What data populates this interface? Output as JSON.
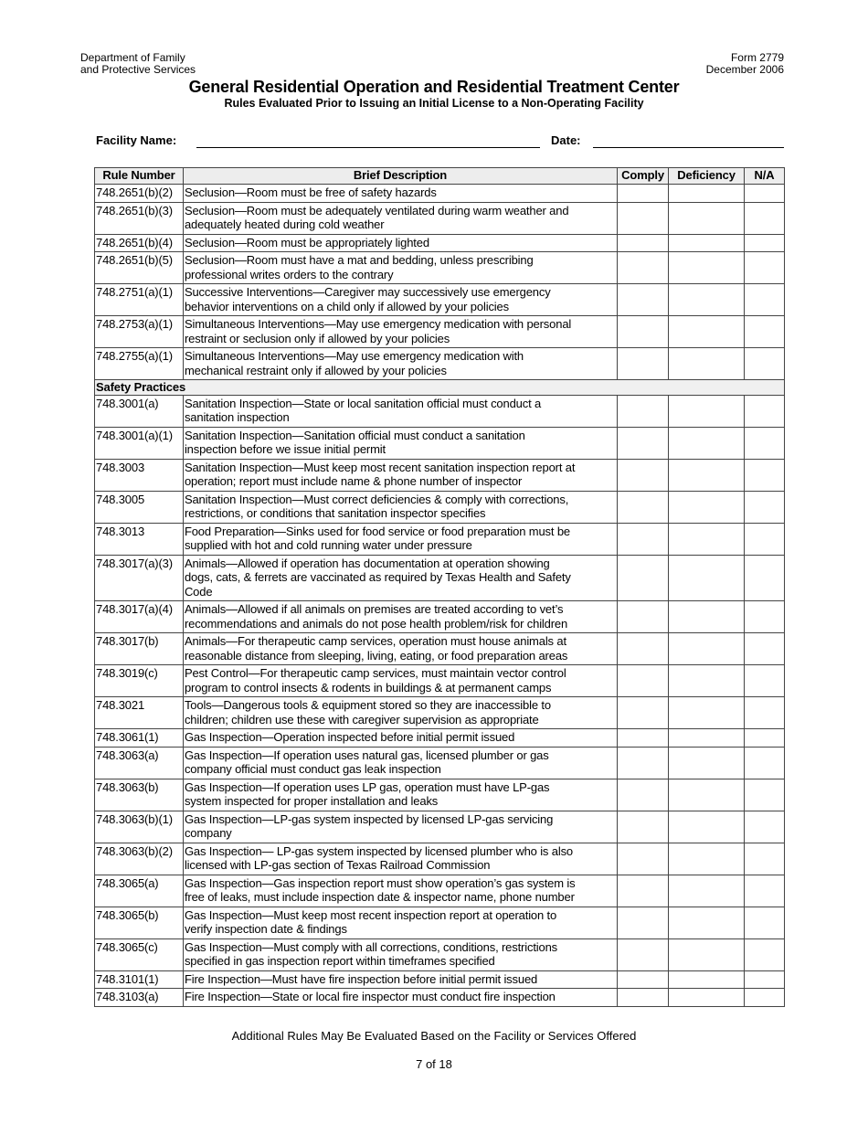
{
  "header": {
    "dept_line1": "Department of Family",
    "dept_line2": "and Protective Services",
    "form": "Form 2779",
    "date": "December 2006",
    "title": "General Residential Operation and Residential Treatment Center",
    "subtitle": "Rules Evaluated Prior to Issuing an Initial License to a Non-Operating Facility"
  },
  "fields": {
    "facility_label": "Facility Name:",
    "facility_value": "",
    "date_label": "Date:",
    "date_value": ""
  },
  "table": {
    "columns": [
      "Rule Number",
      "Brief Description",
      "Comply",
      "Deficiency",
      "N/A"
    ],
    "rows": [
      {
        "rule": "748.2651(b)(2)",
        "desc": "Seclusion—Room must be free of safety hazards"
      },
      {
        "rule": "748.2651(b)(3)",
        "desc": "Seclusion—Room must be adequately ventilated during warm weather and\nadequately heated during cold weather"
      },
      {
        "rule": "748.2651(b)(4)",
        "desc": "Seclusion—Room must be appropriately lighted"
      },
      {
        "rule": "748.2651(b)(5)",
        "desc": "Seclusion—Room must have a mat and bedding, unless prescribing\nprofessional writes orders to the contrary"
      },
      {
        "rule": "748.2751(a)(1)",
        "desc": "Successive Interventions—Caregiver may successively use emergency\nbehavior interventions on a child only if allowed by your policies"
      },
      {
        "rule": "748.2753(a)(1)",
        "desc": "Simultaneous Interventions—May use emergency medication with personal\nrestraint or seclusion only if allowed by your policies"
      },
      {
        "rule": "748.2755(a)(1)",
        "desc": "Simultaneous Interventions—May use emergency medication with\nmechanical restraint only if allowed by your policies"
      },
      {
        "section": "Safety Practices"
      },
      {
        "rule": "748.3001(a)",
        "desc": "Sanitation Inspection—State or local sanitation official must conduct a\nsanitation inspection"
      },
      {
        "rule": "748.3001(a)(1)",
        "desc": "Sanitation Inspection—Sanitation official must conduct a sanitation\ninspection before we issue initial permit"
      },
      {
        "rule": "748.3003",
        "desc": "Sanitation Inspection—Must keep most recent sanitation inspection report at\noperation; report must include name & phone number of inspector"
      },
      {
        "rule": "748.3005",
        "desc": "Sanitation Inspection—Must correct deficiencies & comply with corrections,\nrestrictions, or conditions that sanitation inspector specifies"
      },
      {
        "rule": "748.3013",
        "desc": "Food Preparation—Sinks used for food service or food preparation must be\nsupplied with hot and cold running water under pressure"
      },
      {
        "rule": "748.3017(a)(3)",
        "desc": "Animals—Allowed if operation has documentation at operation showing\ndogs, cats, & ferrets are vaccinated as required by Texas Health and Safety\nCode"
      },
      {
        "rule": "748.3017(a)(4)",
        "desc": "Animals—Allowed if all animals on premises are treated according to vet’s\nrecommendations and animals do not pose health problem/risk for children"
      },
      {
        "rule": "748.3017(b)",
        "desc": "Animals—For therapeutic camp services, operation must house animals at\nreasonable distance from sleeping, living, eating, or food preparation areas"
      },
      {
        "rule": "748.3019(c)",
        "desc": "Pest Control—For therapeutic camp services, must maintain vector control\nprogram to control insects & rodents in buildings & at permanent camps"
      },
      {
        "rule": "748.3021",
        "desc": "Tools—Dangerous tools & equipment stored so they are inaccessible to\nchildren; children use these with caregiver supervision as appropriate"
      },
      {
        "rule": "748.3061(1)",
        "desc": "Gas Inspection—Operation inspected before initial permit issued"
      },
      {
        "rule": "748.3063(a)",
        "desc": "Gas Inspection—If operation uses natural gas, licensed plumber or gas\ncompany official must conduct gas leak inspection"
      },
      {
        "rule": "748.3063(b)",
        "desc": "Gas Inspection—If operation uses LP gas, operation must have LP-gas\nsystem inspected for proper installation and leaks"
      },
      {
        "rule": "748.3063(b)(1)",
        "desc": "Gas Inspection—LP-gas system inspected by licensed LP-gas servicing\ncompany"
      },
      {
        "rule": "748.3063(b)(2)",
        "desc": "Gas Inspection— LP-gas system inspected by licensed plumber who is also\nlicensed with LP-gas section of Texas Railroad Commission"
      },
      {
        "rule": "748.3065(a)",
        "desc": "Gas Inspection—Gas inspection report must show operation’s gas system is\nfree of leaks, must include inspection date & inspector name, phone number"
      },
      {
        "rule": "748.3065(b)",
        "desc": "Gas Inspection—Must keep most recent inspection report at operation to\nverify inspection date & findings"
      },
      {
        "rule": "748.3065(c)",
        "desc": "Gas Inspection—Must comply with all corrections, conditions, restrictions\nspecified in gas inspection report within timeframes specified"
      },
      {
        "rule": "748.3101(1)",
        "desc": "Fire Inspection—Must have fire inspection before initial permit issued"
      },
      {
        "rule": "748.3103(a)",
        "desc": "Fire Inspection—State or local fire inspector must conduct fire inspection"
      }
    ]
  },
  "footer": {
    "note": "Additional Rules May Be Evaluated Based on the Facility or Services Offered",
    "page": "7 of 18"
  }
}
